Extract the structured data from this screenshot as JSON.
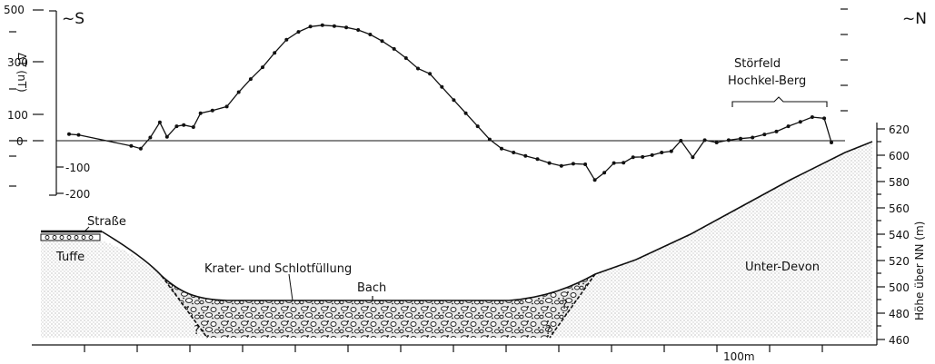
{
  "chart_data": {
    "type": "line",
    "title": "",
    "left_axis": {
      "label": "ΔT (nT)",
      "ticks": [
        "500",
        "300",
        "100",
        "0",
        "-100",
        "-200"
      ],
      "ylim": [
        -200,
        500
      ]
    },
    "right_axis": {
      "label": "Höhe über NN (m)",
      "ticks": [
        "620",
        "600",
        "580",
        "560",
        "540",
        "520",
        "500",
        "480",
        "460"
      ],
      "ylim": [
        460,
        620
      ]
    },
    "orientation": {
      "left": "~S",
      "right": "~N"
    },
    "x_scale_label": "100m",
    "series": [
      {
        "values": [
          [
            0.0,
            25
          ],
          [
            0.2,
            22
          ],
          [
            1.3,
            -20
          ],
          [
            1.5,
            -30
          ],
          [
            1.7,
            12
          ],
          [
            1.9,
            70
          ],
          [
            2.05,
            15
          ],
          [
            2.25,
            55
          ],
          [
            2.4,
            60
          ],
          [
            2.6,
            52
          ],
          [
            2.75,
            105
          ],
          [
            3.0,
            115
          ],
          [
            3.3,
            130
          ],
          [
            3.55,
            185
          ],
          [
            3.8,
            235
          ],
          [
            4.05,
            280
          ],
          [
            4.3,
            335
          ],
          [
            4.55,
            385
          ],
          [
            4.8,
            415
          ],
          [
            5.05,
            435
          ],
          [
            5.3,
            440
          ],
          [
            5.55,
            437
          ],
          [
            5.8,
            432
          ],
          [
            6.05,
            422
          ],
          [
            6.3,
            405
          ],
          [
            6.55,
            380
          ],
          [
            6.8,
            350
          ],
          [
            7.05,
            315
          ],
          [
            7.3,
            275
          ],
          [
            7.55,
            255
          ],
          [
            7.8,
            205
          ],
          [
            8.05,
            155
          ],
          [
            8.3,
            105
          ],
          [
            8.55,
            55
          ],
          [
            8.8,
            5
          ],
          [
            9.05,
            -30
          ],
          [
            9.3,
            -45
          ],
          [
            9.55,
            -58
          ],
          [
            9.8,
            -70
          ],
          [
            10.05,
            -85
          ],
          [
            10.3,
            -96
          ],
          [
            10.55,
            -88
          ],
          [
            10.8,
            -90
          ],
          [
            11.0,
            -150
          ],
          [
            11.2,
            -122
          ],
          [
            11.4,
            -85
          ],
          [
            11.6,
            -84
          ],
          [
            11.8,
            -63
          ],
          [
            12.0,
            -62
          ],
          [
            12.2,
            -55
          ],
          [
            12.4,
            -45
          ],
          [
            12.6,
            -40
          ],
          [
            12.8,
            0
          ],
          [
            13.05,
            -63
          ],
          [
            13.3,
            2
          ],
          [
            13.55,
            -7
          ],
          [
            13.8,
            2
          ],
          [
            14.05,
            8
          ],
          [
            14.3,
            12
          ],
          [
            14.55,
            24
          ],
          [
            14.8,
            35
          ],
          [
            15.05,
            55
          ],
          [
            15.3,
            72
          ],
          [
            15.55,
            90
          ],
          [
            15.8,
            85
          ],
          [
            15.95,
            -7
          ]
        ]
      }
    ],
    "profile": {
      "annotations": {
        "road": "Straße",
        "tuff": "Tuffe",
        "fill": "Krater- und Schlotfüllung",
        "brook": "Bach",
        "bedrock": "Unter-Devon",
        "question_mark": "?"
      },
      "disturbance_label_line1": "Störfeld",
      "disturbance_label_line2": "Hochkel-Berg"
    }
  }
}
